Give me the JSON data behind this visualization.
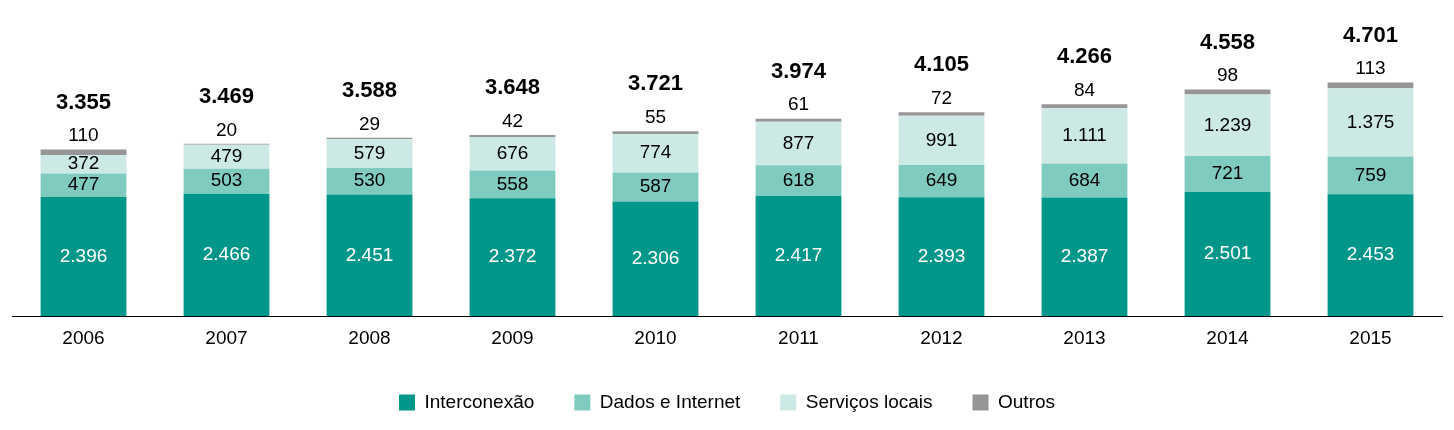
{
  "chart_data": {
    "type": "bar",
    "stacked": true,
    "legend": "bottom",
    "grid": false,
    "categories": [
      "2006",
      "2007",
      "2008",
      "2009",
      "2010",
      "2011",
      "2012",
      "2013",
      "2014",
      "2015"
    ],
    "series": [
      {
        "name": "Interconexão",
        "color": "#00968a",
        "values": [
          2396,
          2466,
          2451,
          2372,
          2306,
          2417,
          2393,
          2387,
          2501,
          2453
        ],
        "value_labels": [
          "2.396",
          "2.466",
          "2.451",
          "2.372",
          "2.306",
          "2.417",
          "2.393",
          "2.387",
          "2.501",
          "2.453"
        ]
      },
      {
        "name": "Dados e Internet",
        "color": "#80cbc0",
        "values": [
          477,
          503,
          530,
          558,
          587,
          618,
          649,
          684,
          721,
          759
        ],
        "value_labels": [
          "477",
          "503",
          "530",
          "558",
          "587",
          "618",
          "649",
          "684",
          "721",
          "759"
        ]
      },
      {
        "name": "Serviços locais",
        "color": "#cde9e5",
        "values": [
          372,
          479,
          579,
          676,
          774,
          877,
          991,
          1111,
          1239,
          1375
        ],
        "value_labels": [
          "372",
          "479",
          "579",
          "676",
          "774",
          "877",
          "991",
          "1.111",
          "1.239",
          "1.375"
        ]
      },
      {
        "name": "Outros",
        "color": "#969696",
        "values": [
          110,
          20,
          29,
          42,
          55,
          61,
          72,
          84,
          98,
          113
        ],
        "value_labels": [
          "110",
          "20",
          "29",
          "42",
          "55",
          "61",
          "72",
          "84",
          "98",
          "113"
        ]
      }
    ],
    "totals": [
      "3.355",
      "3.469",
      "3.588",
      "3.648",
      "3.721",
      "3.974",
      "4.105",
      "4.266",
      "4.558",
      "4.701"
    ]
  }
}
